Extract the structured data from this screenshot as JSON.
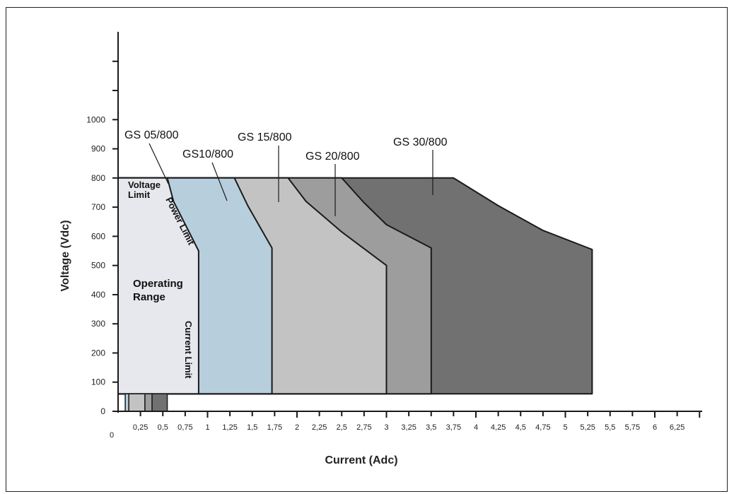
{
  "chart_data": {
    "type": "area",
    "title": "",
    "xlabel": "Current (Adc)",
    "ylabel": "Voltage (Vdc)",
    "xlim": [
      0,
      6.5
    ],
    "ylim": [
      0,
      1000
    ],
    "x_origin_label": "0",
    "x_tick_labels": [
      "0,25",
      "0,5",
      "0,75",
      "1",
      "1,25",
      "1,5",
      "1,75",
      "2",
      "2,25",
      "2,5",
      "2,75",
      "3",
      "3,25",
      "3,5",
      "3,75",
      "4",
      "4,25",
      "4,5",
      "4,75",
      "5",
      "5,25",
      "5,5",
      "5,75",
      "6",
      "6,25"
    ],
    "x_tick_values": [
      0.25,
      0.5,
      0.75,
      1,
      1.25,
      1.5,
      1.75,
      2,
      2.25,
      2.5,
      2.75,
      3,
      3.25,
      3.5,
      3.75,
      4,
      4.25,
      4.5,
      4.75,
      5,
      5.25,
      5.5,
      5.75,
      6,
      6.25
    ],
    "y_tick_labels": [
      "0",
      "100",
      "200",
      "300",
      "400",
      "500",
      "600",
      "700",
      "800",
      "900",
      "1000"
    ],
    "y_tick_values": [
      0,
      100,
      200,
      300,
      400,
      500,
      600,
      700,
      800,
      900,
      1000
    ],
    "colors": {
      "GS 30/800": "#717171",
      "GS 20/800": "#9d9d9d",
      "GS 15/800": "#c3c3c3",
      "GS10/800": "#b7cedd",
      "GS 05/800": "#e7e8ee",
      "outline": "#1a1a1a"
    },
    "series": [
      {
        "name": "GS 30/800",
        "points": [
          [
            0,
            60
          ],
          [
            0,
            800
          ],
          [
            3.75,
            800
          ],
          [
            4.25,
            705
          ],
          [
            4.75,
            620
          ],
          [
            5.3,
            555
          ],
          [
            5.3,
            60
          ]
        ]
      },
      {
        "name": "GS 20/800",
        "points": [
          [
            0,
            60
          ],
          [
            0,
            800
          ],
          [
            2.5,
            800
          ],
          [
            2.75,
            715
          ],
          [
            3,
            640
          ],
          [
            3.5,
            560
          ],
          [
            3.5,
            60
          ]
        ]
      },
      {
        "name": "GS 15/800",
        "points": [
          [
            0,
            60
          ],
          [
            0,
            800
          ],
          [
            1.9,
            800
          ],
          [
            2.1,
            720
          ],
          [
            2.5,
            615
          ],
          [
            3,
            500
          ],
          [
            3,
            60
          ]
        ]
      },
      {
        "name": "GS10/800",
        "points": [
          [
            0,
            60
          ],
          [
            0,
            800
          ],
          [
            1.3,
            800
          ],
          [
            1.45,
            705
          ],
          [
            1.72,
            560
          ],
          [
            1.72,
            60
          ]
        ]
      },
      {
        "name": "GS 05/800",
        "points": [
          [
            0,
            60
          ],
          [
            0,
            800
          ],
          [
            0.55,
            800
          ],
          [
            0.62,
            720
          ],
          [
            0.9,
            550
          ],
          [
            0.9,
            60
          ]
        ]
      }
    ],
    "bottom_swatches": [
      {
        "x0": 0.08,
        "x1": 0.12,
        "color": "#b7cedd"
      },
      {
        "x0": 0.12,
        "x1": 0.3,
        "color": "#c3c3c3"
      },
      {
        "x0": 0.3,
        "x1": 0.38,
        "color": "#9d9d9d"
      },
      {
        "x0": 0.38,
        "x1": 0.55,
        "color": "#717171"
      }
    ],
    "series_labels": [
      "GS 05/800",
      "GS10/800",
      "GS 15/800",
      "GS 20/800",
      "GS 30/800"
    ],
    "annotations": {
      "voltage_limit": [
        "Voltage",
        "Limit"
      ],
      "power_limit": "Power Limit",
      "operating_range": [
        "Operating",
        "Range"
      ],
      "current_limit": "Current Limit"
    }
  }
}
